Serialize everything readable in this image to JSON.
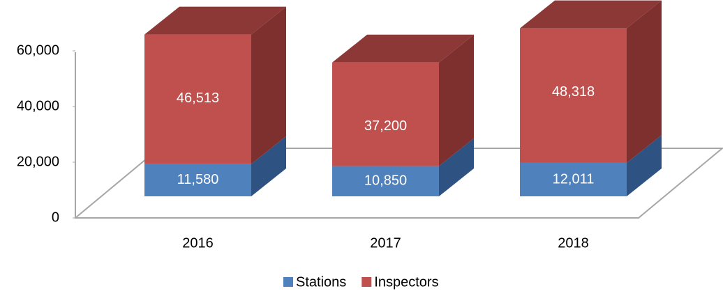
{
  "chart_data": {
    "type": "bar3d_stacked",
    "categories": [
      "2016",
      "2017",
      "2018"
    ],
    "series": [
      {
        "name": "Stations",
        "color": "#4f81bd",
        "side": "#2e5282",
        "values": [
          11580,
          10850,
          12011
        ],
        "value_labels": [
          "11,580",
          "10,850",
          "12,011"
        ]
      },
      {
        "name": "Inspectors",
        "color": "#c0504d",
        "side": "#7e302f",
        "values": [
          46513,
          37200,
          48318
        ],
        "value_labels": [
          "46,513",
          "37,200",
          "48,318"
        ]
      }
    ],
    "ylim": [
      0,
      60000
    ],
    "yticks": [
      0,
      {
        "value": 20000,
        "label": "20,000"
      },
      {
        "value": 40000,
        "label": "40,000"
      },
      {
        "value": 60000,
        "label": "60,000"
      }
    ],
    "legend": "bottom"
  }
}
